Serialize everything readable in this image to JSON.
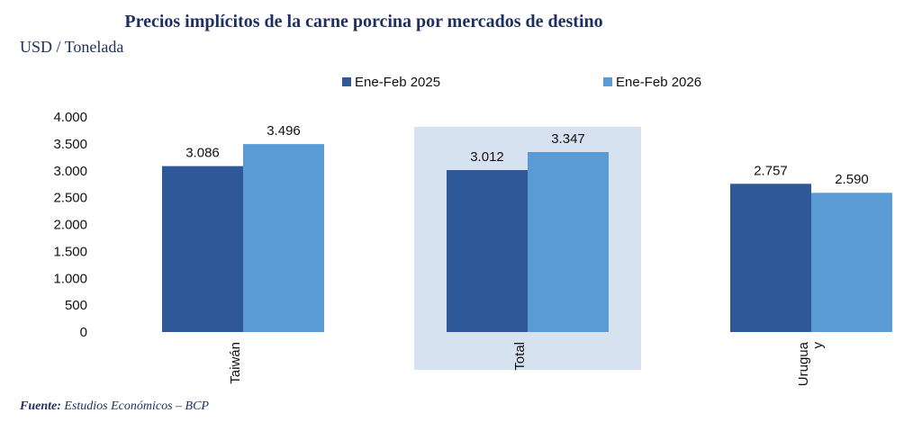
{
  "chart_data": {
    "type": "bar",
    "title": "Precios implícitos de la carne porcina por mercados de destino",
    "subtitle": "USD / Tonelada",
    "categories": [
      "Taiwán",
      "Total",
      "Urugua\ny"
    ],
    "series": [
      {
        "name": "Ene-Feb 2025",
        "values": [
          3086,
          3012,
          2757
        ],
        "labels": [
          "3.086",
          "3.012",
          "2.757"
        ],
        "color": "#2e5898"
      },
      {
        "name": "Ene-Feb 2026",
        "values": [
          3496,
          3347,
          2590
        ],
        "labels": [
          "3.496",
          "3.347",
          "2.590"
        ],
        "color": "#5b9bd5"
      }
    ],
    "ylim": [
      0,
      4000
    ],
    "yticks": [
      {
        "value": 0,
        "label": "0"
      },
      {
        "value": 500,
        "label": "500"
      },
      {
        "value": 1000,
        "label": "1.000"
      },
      {
        "value": 1500,
        "label": "1.500"
      },
      {
        "value": 2000,
        "label": "2.000"
      },
      {
        "value": 2500,
        "label": "2.500"
      },
      {
        "value": 3000,
        "label": "3.000"
      },
      {
        "value": 3500,
        "label": "3.500"
      },
      {
        "value": 4000,
        "label": "4.000"
      }
    ],
    "highlight_category": "Total",
    "highlight_color": "#d6e2ef",
    "xlabel": "",
    "ylabel": "",
    "grid": false,
    "legend_position": "top"
  },
  "source": {
    "label": "Fuente:",
    "text": " Estudios Económicos – BCP"
  }
}
